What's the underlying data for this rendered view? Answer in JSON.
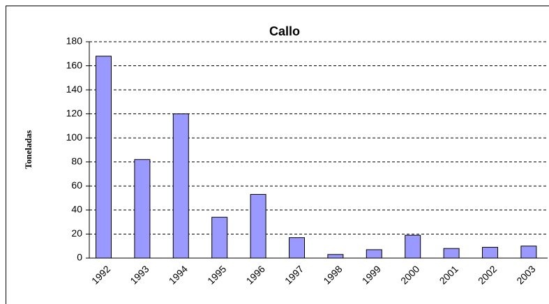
{
  "chart_data": {
    "type": "bar",
    "title": "Callo",
    "y_label": "Toneladas",
    "categories": [
      "1992",
      "1993",
      "1994",
      "1995",
      "1996",
      "1997",
      "1998",
      "1999",
      "2000",
      "2001",
      "2002",
      "2003"
    ],
    "values": [
      168,
      82,
      120,
      34,
      53,
      17,
      3,
      7,
      19,
      8,
      9,
      10
    ],
    "color": "#9999ff",
    "ylim": [
      0,
      180
    ],
    "yticks": [
      0,
      20,
      40,
      60,
      80,
      100,
      120,
      140,
      160,
      180
    ],
    "grid": true
  }
}
